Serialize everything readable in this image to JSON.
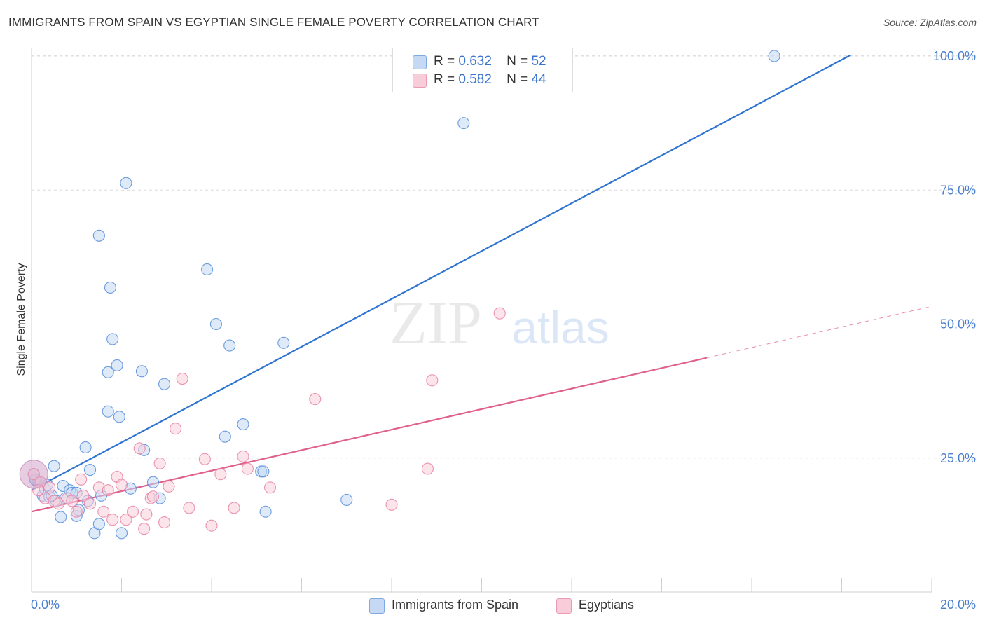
{
  "title": "IMMIGRANTS FROM SPAIN VS EGYPTIAN SINGLE FEMALE POVERTY CORRELATION CHART",
  "source": "Source: ZipAtlas.com",
  "watermark": {
    "zip": "ZIP",
    "atlas": "atlas"
  },
  "legend": {
    "rows": [
      {
        "r_label": "R =",
        "r_value": "0.632",
        "n_label": "N =",
        "n_value": "52",
        "color": "#aac8f0"
      },
      {
        "r_label": "R =",
        "r_value": "0.582",
        "n_label": "N =",
        "n_value": "44",
        "color": "#f7b8cc"
      }
    ]
  },
  "bottom_legend": [
    {
      "label": "Immigrants from Spain",
      "color": "#aac8f0"
    },
    {
      "label": "Egyptians",
      "color": "#f7b8cc"
    }
  ],
  "chart_data": {
    "type": "scatter",
    "title": "IMMIGRANTS FROM SPAIN VS EGYPTIAN SINGLE FEMALE POVERTY CORRELATION CHART",
    "xlabel": "",
    "ylabel": "Single Female Poverty",
    "xlim": [
      0,
      20
    ],
    "ylim": [
      0,
      102
    ],
    "x_tick_labels": [
      {
        "value": 0,
        "label": "0.0%"
      },
      {
        "value": 20,
        "label": "20.0%"
      }
    ],
    "y_tick_labels": [
      {
        "value": 25,
        "label": "25.0%"
      },
      {
        "value": 50,
        "label": "50.0%"
      },
      {
        "value": 75,
        "label": "75.0%"
      },
      {
        "value": 100,
        "label": "100.0%"
      }
    ],
    "grid": true,
    "legend_position": "top-center",
    "series": [
      {
        "name": "Immigrants from Spain",
        "color": "#4a86d8",
        "fill": "#c5d9f4",
        "trend": {
          "x": [
            0,
            18.2
          ],
          "y": [
            19.0,
            100.2
          ],
          "color": "#2f74d0"
        },
        "points": [
          [
            0.05,
            22.0
          ],
          [
            0.1,
            20.8
          ],
          [
            0.15,
            20.5
          ],
          [
            0.25,
            18.0
          ],
          [
            0.3,
            19.2
          ],
          [
            0.35,
            20.0
          ],
          [
            0.4,
            17.8
          ],
          [
            0.5,
            23.5
          ],
          [
            0.55,
            17.0
          ],
          [
            0.65,
            14.0
          ],
          [
            0.7,
            19.8
          ],
          [
            0.75,
            17.5
          ],
          [
            0.85,
            19.0
          ],
          [
            0.9,
            18.5
          ],
          [
            1.0,
            14.2
          ],
          [
            1.05,
            15.3
          ],
          [
            1.2,
            27.0
          ],
          [
            1.25,
            17.0
          ],
          [
            1.3,
            22.8
          ],
          [
            1.4,
            11.0
          ],
          [
            1.5,
            12.7
          ],
          [
            1.5,
            66.5
          ],
          [
            1.55,
            18.0
          ],
          [
            1.7,
            41.0
          ],
          [
            1.7,
            33.7
          ],
          [
            1.75,
            56.8
          ],
          [
            1.8,
            47.2
          ],
          [
            1.9,
            42.3
          ],
          [
            1.95,
            32.7
          ],
          [
            2.0,
            11.0
          ],
          [
            2.1,
            76.3
          ],
          [
            2.2,
            19.3
          ],
          [
            2.45,
            41.2
          ],
          [
            2.5,
            26.5
          ],
          [
            2.7,
            20.5
          ],
          [
            2.85,
            17.5
          ],
          [
            2.95,
            38.8
          ],
          [
            3.9,
            60.2
          ],
          [
            4.1,
            50.0
          ],
          [
            4.3,
            29.0
          ],
          [
            4.4,
            46.0
          ],
          [
            4.7,
            31.3
          ],
          [
            5.1,
            22.5
          ],
          [
            5.15,
            22.5
          ],
          [
            5.2,
            15.0
          ],
          [
            5.6,
            46.5
          ],
          [
            7.0,
            17.2
          ],
          [
            9.6,
            87.5
          ],
          [
            16.5,
            100.0
          ],
          [
            0.08,
            21.0
          ],
          [
            0.45,
            18.0
          ],
          [
            1.0,
            18.5
          ]
        ],
        "big_points": [
          [
            0.05,
            22.0
          ]
        ]
      },
      {
        "name": "Egyptians",
        "color": "#e77aa0",
        "fill": "#f8cdd9",
        "trend": {
          "x": [
            0,
            15.0
          ],
          "y": [
            15.0,
            43.7
          ],
          "color": "#e0608c"
        },
        "trend_dashed": {
          "x": [
            15.0,
            20.0
          ],
          "y": [
            43.7,
            53.3
          ]
        },
        "points": [
          [
            0.05,
            22.0
          ],
          [
            0.2,
            20.5
          ],
          [
            0.3,
            17.5
          ],
          [
            0.4,
            19.5
          ],
          [
            0.5,
            17.0
          ],
          [
            0.6,
            16.5
          ],
          [
            0.8,
            17.5
          ],
          [
            0.9,
            17.0
          ],
          [
            1.0,
            15.0
          ],
          [
            1.1,
            21.0
          ],
          [
            1.15,
            18.0
          ],
          [
            1.3,
            16.5
          ],
          [
            1.5,
            19.5
          ],
          [
            1.6,
            15.0
          ],
          [
            1.7,
            19.0
          ],
          [
            1.8,
            13.5
          ],
          [
            1.9,
            21.5
          ],
          [
            2.0,
            20.0
          ],
          [
            2.1,
            13.5
          ],
          [
            2.25,
            15.0
          ],
          [
            2.4,
            26.8
          ],
          [
            2.5,
            11.8
          ],
          [
            2.55,
            14.5
          ],
          [
            2.65,
            17.5
          ],
          [
            2.7,
            17.8
          ],
          [
            2.85,
            24.0
          ],
          [
            2.95,
            13.0
          ],
          [
            3.05,
            19.7
          ],
          [
            3.2,
            30.5
          ],
          [
            3.35,
            39.8
          ],
          [
            3.5,
            15.7
          ],
          [
            3.85,
            24.8
          ],
          [
            4.0,
            12.4
          ],
          [
            4.2,
            22.0
          ],
          [
            4.5,
            15.7
          ],
          [
            4.7,
            25.3
          ],
          [
            4.8,
            23.0
          ],
          [
            5.3,
            19.5
          ],
          [
            6.3,
            36.0
          ],
          [
            8.0,
            16.3
          ],
          [
            8.8,
            23.0
          ],
          [
            8.9,
            39.5
          ],
          [
            10.4,
            52.0
          ],
          [
            0.15,
            19.0
          ]
        ],
        "big_points": [
          [
            0.05,
            22.0
          ]
        ]
      }
    ]
  }
}
